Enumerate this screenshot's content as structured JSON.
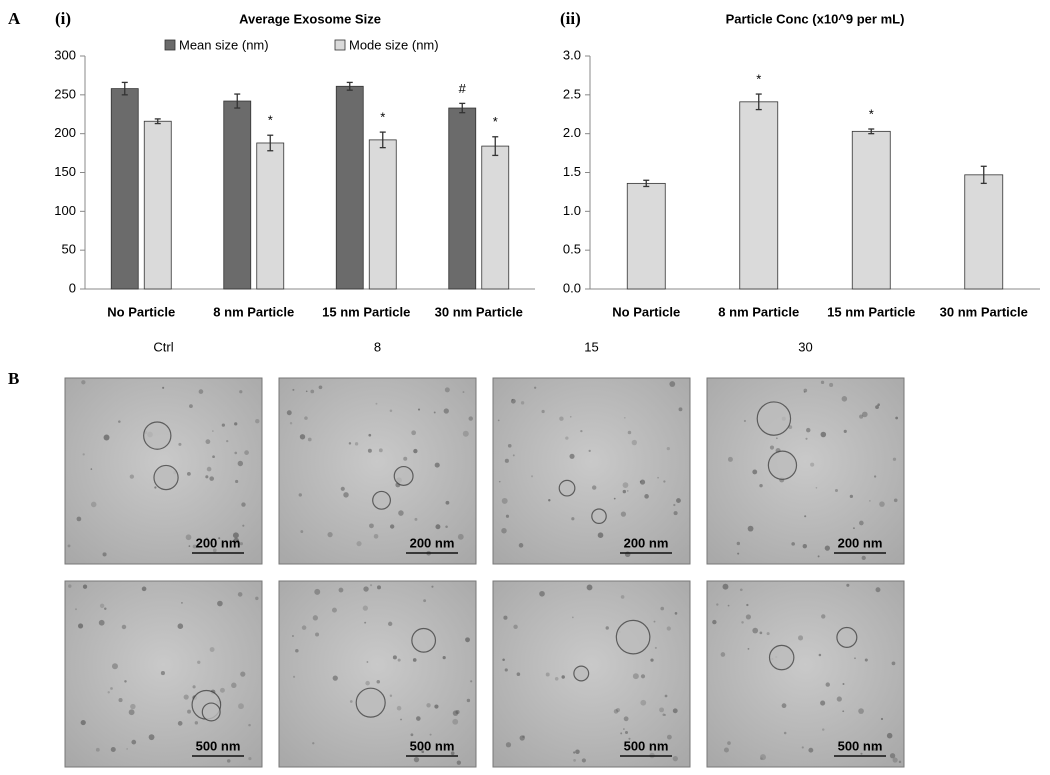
{
  "chart_data": [
    {
      "type": "bar",
      "label": "(i)",
      "title": "Average Exosome Size",
      "categories": [
        "No Particle",
        "8 nm Particle",
        "15 nm Particle",
        "30 nm Particle"
      ],
      "series": [
        {
          "name": "Mean size (nm)",
          "color": "#6b6b6b",
          "values": [
            258,
            242,
            261,
            233
          ],
          "errors": [
            8,
            9,
            5,
            6
          ],
          "annotations": [
            null,
            null,
            null,
            "#"
          ]
        },
        {
          "name": "Mode size (nm)",
          "color": "#dadada",
          "values": [
            216,
            188,
            192,
            184
          ],
          "errors": [
            3,
            10,
            10,
            12
          ],
          "annotations": [
            null,
            "*",
            "*",
            "*"
          ]
        }
      ],
      "ylim": [
        0,
        300
      ],
      "yticks": [
        0,
        50,
        100,
        150,
        200,
        250,
        300
      ],
      "legend": "top"
    },
    {
      "type": "bar",
      "label": "(ii)",
      "title": "Particle Conc (x10^9 per mL)",
      "categories": [
        "No Particle",
        "8 nm Particle",
        "15 nm Particle",
        "30 nm Particle"
      ],
      "color": "#dadada",
      "values": [
        1.36,
        2.41,
        2.03,
        1.47
      ],
      "errors": [
        0.04,
        0.1,
        0.03,
        0.11
      ],
      "annotations": [
        null,
        "*",
        "*",
        null
      ],
      "ylim": [
        0,
        3
      ],
      "yticks": [
        {
          "value": 0,
          "label": "0.0"
        },
        0.5,
        {
          "value": 1,
          "label": "1.0"
        },
        1.5,
        {
          "value": 2,
          "label": "2.0"
        },
        2.5,
        {
          "value": 3,
          "label": "3.0"
        }
      ]
    }
  ],
  "figure": {
    "panel_a": "A",
    "panel_b": "B",
    "columns": [
      "Ctrl",
      "8",
      "15",
      "30"
    ],
    "scale_bars": [
      [
        "200 nm",
        "200 nm",
        "200 nm",
        "200 nm"
      ],
      [
        "500 nm",
        "500 nm",
        "500 nm",
        "500 nm"
      ]
    ]
  }
}
